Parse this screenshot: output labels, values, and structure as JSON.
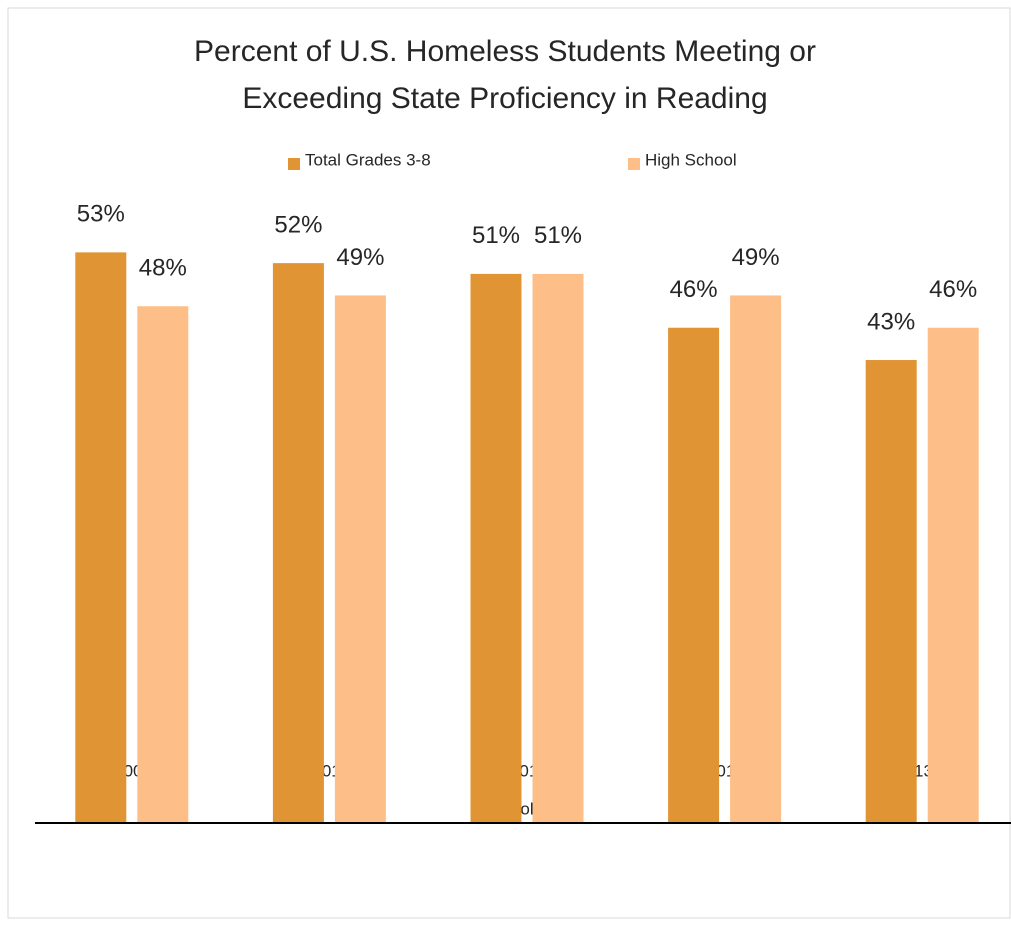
{
  "chart_data": {
    "type": "bar",
    "title": "Percent of U.S. Homeless Students Meeting or Exceeding State Proficiency in Reading",
    "xlabel": "School Year",
    "categories": [
      "SY 2009-10",
      "SY 2010-11",
      "SY 2011-12",
      "SY 2012-13",
      "SY 2013-2014"
    ],
    "series": [
      {
        "name": "Total Grades 3-8",
        "color": "#e09433",
        "values": [
          53,
          52,
          51,
          46,
          43
        ],
        "value_labels": [
          "53%",
          "52%",
          "51%",
          "46%",
          "43%"
        ]
      },
      {
        "name": "High School",
        "color": "#fdbf87",
        "values": [
          48,
          49,
          51,
          49,
          46
        ],
        "value_labels": [
          "48%",
          "49%",
          "51%",
          "49%",
          "46%"
        ]
      }
    ],
    "ylim": [
      0,
      60
    ],
    "grid": false,
    "legend": "top"
  }
}
